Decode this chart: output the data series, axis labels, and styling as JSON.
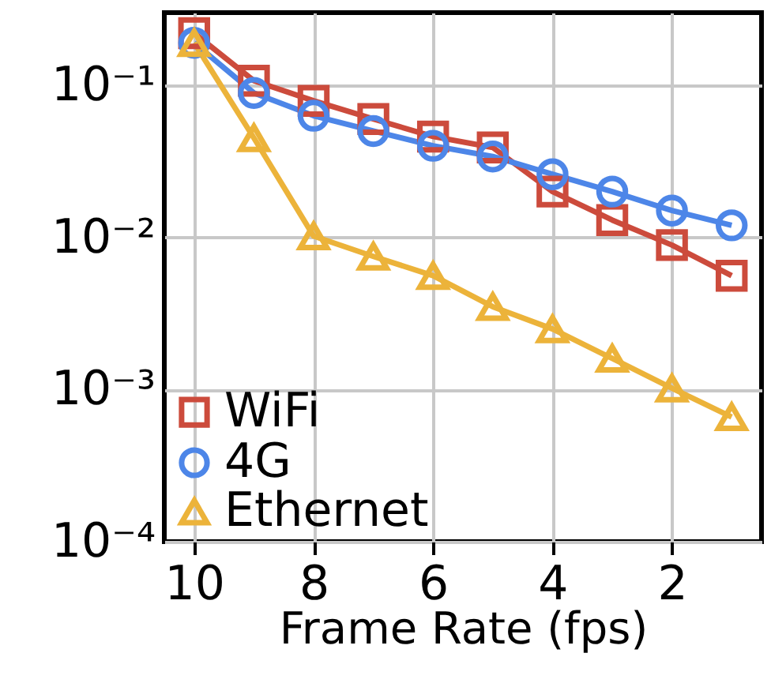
{
  "chart_data": {
    "type": "line",
    "xlabel": "Frame Rate (fps)",
    "x": [
      10,
      9,
      8,
      7,
      6,
      5,
      4,
      3,
      2,
      1
    ],
    "series": [
      {
        "name": "WiFi",
        "color": "#cc4b3c",
        "marker": "square",
        "values": [
          0.22,
          0.107,
          0.079,
          0.06,
          0.046,
          0.039,
          0.02,
          0.013,
          0.0089,
          0.0056
        ]
      },
      {
        "name": "4G",
        "color": "#4d86e8",
        "marker": "circle",
        "values": [
          0.19,
          0.089,
          0.063,
          0.05,
          0.04,
          0.034,
          0.026,
          0.02,
          0.015,
          0.012
        ]
      },
      {
        "name": "Ethernet",
        "color": "#ecb33a",
        "marker": "triangle",
        "values": [
          0.19,
          0.045,
          0.0102,
          0.0075,
          0.0056,
          0.0035,
          0.0025,
          0.0016,
          0.00102,
          0.00066
        ]
      }
    ],
    "xlim": [
      10.5,
      0.5
    ],
    "xticks": [
      10,
      8,
      6,
      4,
      2
    ],
    "ylim": [
      0.0001,
      0.3
    ],
    "yticks": [
      {
        "value": 0.1,
        "label": "10⁻¹"
      },
      {
        "value": 0.01,
        "label": "10⁻²"
      },
      {
        "value": 0.001,
        "label": "10⁻³"
      },
      {
        "value": 0.0001,
        "label": "10⁻⁴"
      }
    ],
    "log": "y",
    "grid": true,
    "legend": "bottom left",
    "line_style": "solid"
  }
}
